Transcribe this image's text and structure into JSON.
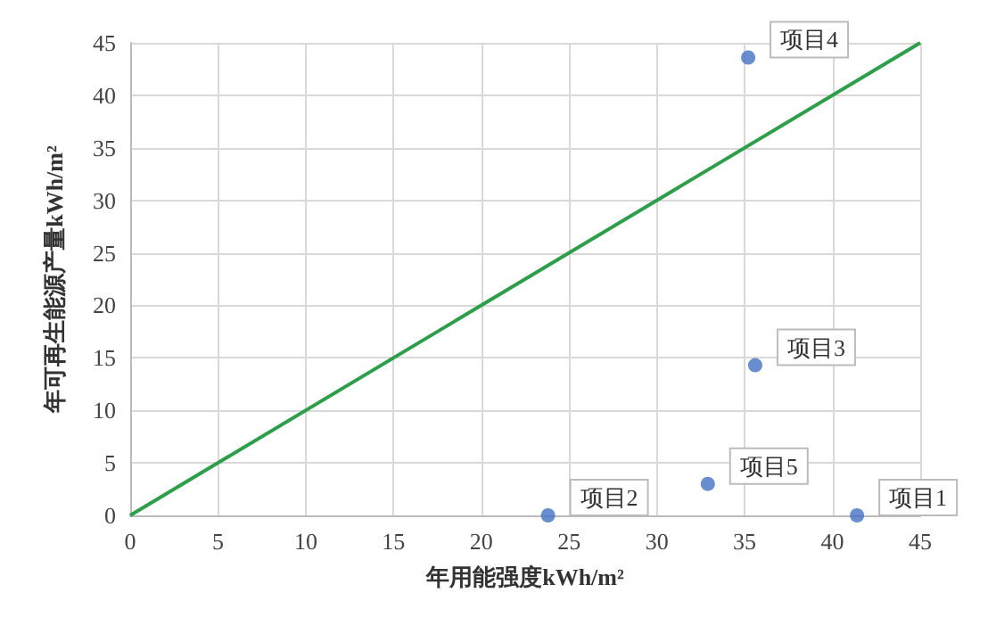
{
  "chart_data": {
    "type": "scatter",
    "xlabel": "年用能强度kWh/m²",
    "ylabel": "年可再生能源产量kWh/m²",
    "x": [
      35.2,
      35.6,
      32.9,
      23.8,
      41.4
    ],
    "series": [
      {
        "color": "#4472c4",
        "values": [
          43.6,
          14.3,
          3.0,
          0,
          0
        ]
      },
      {
        "type": "line",
        "color": "#2e9e4a",
        "x": [
          0,
          45
        ],
        "values": [
          0,
          45
        ],
        "marker": "none"
      }
    ],
    "annotations": [
      {
        "text": "项目4",
        "x": 35.2,
        "y": 43.6
      },
      {
        "text": "项目3",
        "x": 35.6,
        "y": 14.3
      },
      {
        "text": "项目5",
        "x": 32.9,
        "y": 3.0
      },
      {
        "text": "项目2",
        "x": 23.8,
        "y": 0
      },
      {
        "text": "项目1",
        "x": 41.4,
        "y": 0
      }
    ],
    "xlim": [
      0,
      45
    ],
    "ylim": [
      0,
      45
    ],
    "xticks": [
      0,
      5,
      10,
      15,
      20,
      25,
      30,
      35,
      40,
      45
    ],
    "yticks": [
      0,
      5,
      10,
      15,
      20,
      25,
      30,
      35,
      40,
      45
    ],
    "grid": true,
    "marker": "circle"
  }
}
